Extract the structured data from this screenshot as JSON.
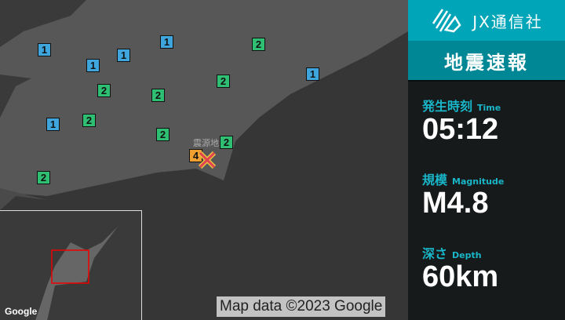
{
  "map": {
    "epicenter_label": "震源地",
    "credit": "Map data ©2023 Google",
    "google_logo": "Google",
    "markers": [
      "1",
      "1",
      "1",
      "1",
      "1",
      "1",
      "2",
      "2",
      "2",
      "2",
      "2",
      "2",
      "2",
      "2",
      "4"
    ],
    "intensity_colors": {
      "1": "#3ea5dd",
      "2": "#2fbf72",
      "4": "#f0a030"
    },
    "epicenter_icon": "x-mark-icon"
  },
  "panel": {
    "brand": "JX通信社",
    "title": "地震速報",
    "items": [
      {
        "label": "発生時刻",
        "sub": "Time",
        "value": "05:12"
      },
      {
        "label": "規模",
        "sub": "Magnitude",
        "value": "M4.8"
      },
      {
        "label": "深さ",
        "sub": "Depth",
        "value": "60km"
      }
    ]
  }
}
